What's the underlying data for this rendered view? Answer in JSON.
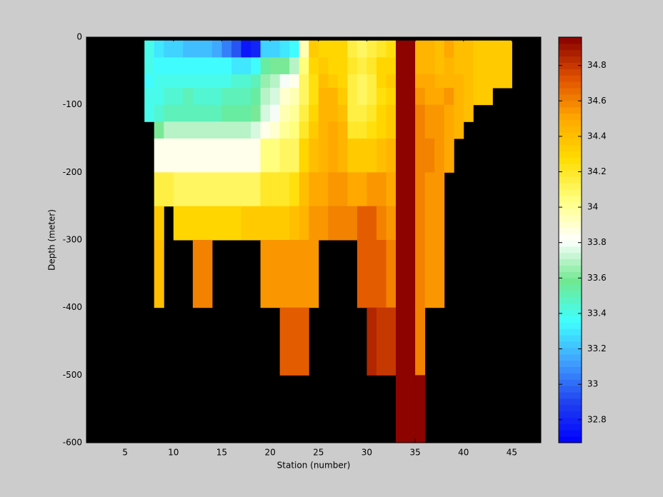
{
  "chart_data": {
    "type": "heatmap",
    "xlabel": "Station (number)",
    "ylabel": "Depth (meter)",
    "xlim": [
      1,
      48
    ],
    "ylim": [
      -600,
      0
    ],
    "xticks": [
      5,
      10,
      15,
      20,
      25,
      30,
      35,
      40,
      45
    ],
    "yticks": [
      -600,
      -500,
      -400,
      -300,
      -200,
      -100,
      0
    ],
    "xbins": [
      7,
      8,
      9,
      10,
      11,
      12,
      13,
      14,
      15,
      16,
      17,
      18,
      19,
      20,
      21,
      22,
      23,
      24,
      25,
      26,
      27,
      28,
      29,
      30,
      31,
      32,
      33,
      34,
      35,
      36,
      37,
      38,
      39,
      40,
      41,
      42,
      43,
      44,
      45
    ],
    "ybins": [
      -5,
      -30,
      -55,
      -75,
      -100,
      -125,
      -150,
      -200,
      -250,
      -300,
      -400,
      -500,
      -600
    ],
    "background": "#000000",
    "clim": [
      32.67,
      34.96
    ],
    "cticks": [
      32.8,
      33,
      33.2,
      33.4,
      33.6,
      33.8,
      34,
      34.2,
      34.4,
      34.6,
      34.8
    ],
    "colormap": [
      "#0000ff",
      "#2040f0",
      "#40a0ff",
      "#40ffff",
      "#70e890",
      "#ffffff",
      "#ffff80",
      "#ffdc00",
      "#ffa800",
      "#e05000",
      "#880000"
    ],
    "z": [
      [
        33.4,
        33.4,
        33.35,
        33.4,
        33.4,
        null,
        null,
        null,
        null,
        null,
        null,
        null
      ],
      [
        33.3,
        33.35,
        33.4,
        33.4,
        33.45,
        33.6,
        33.85,
        34.15,
        34.35,
        34.4,
        null,
        null
      ],
      [
        33.25,
        33.35,
        33.4,
        33.45,
        33.5,
        33.7,
        33.85,
        34.15,
        null,
        null,
        null,
        null
      ],
      [
        33.25,
        33.35,
        33.4,
        33.45,
        33.5,
        33.7,
        33.85,
        34.1,
        34.3,
        null,
        null,
        null
      ],
      [
        33.2,
        33.35,
        33.4,
        33.5,
        33.5,
        33.7,
        33.85,
        34.1,
        34.3,
        null,
        null,
        null
      ],
      [
        33.2,
        33.35,
        33.4,
        33.45,
        33.5,
        33.7,
        33.85,
        34.1,
        34.3,
        34.6,
        null,
        null
      ],
      [
        33.2,
        33.35,
        33.4,
        33.45,
        33.5,
        33.7,
        33.85,
        34.1,
        34.3,
        34.6,
        null,
        null
      ],
      [
        33.15,
        33.35,
        33.4,
        33.45,
        33.5,
        33.7,
        33.85,
        34.1,
        34.3,
        null,
        null,
        null
      ],
      [
        33.05,
        33.35,
        33.4,
        33.5,
        33.55,
        33.7,
        33.85,
        34.1,
        34.3,
        null,
        null,
        null
      ],
      [
        32.95,
        33.3,
        33.45,
        33.5,
        33.55,
        33.7,
        33.85,
        34.1,
        34.3,
        null,
        null,
        null
      ],
      [
        32.75,
        33.3,
        33.45,
        33.5,
        33.55,
        33.7,
        33.85,
        34.1,
        34.35,
        null,
        null,
        null
      ],
      [
        32.8,
        33.35,
        33.5,
        33.55,
        33.6,
        33.75,
        33.85,
        34.1,
        34.35,
        null,
        null,
        null
      ],
      [
        33.25,
        33.55,
        33.65,
        33.7,
        33.75,
        33.85,
        34.05,
        34.2,
        34.35,
        34.55,
        null,
        null
      ],
      [
        33.25,
        33.6,
        33.7,
        33.75,
        33.8,
        33.9,
        34.05,
        34.2,
        34.35,
        34.55,
        null,
        null
      ],
      [
        33.3,
        33.6,
        33.8,
        33.9,
        33.95,
        34,
        34.1,
        34.2,
        34.35,
        34.55,
        34.7,
        null
      ],
      [
        33.35,
        33.7,
        33.85,
        33.95,
        34,
        34.05,
        34.1,
        34.25,
        34.4,
        34.55,
        34.7,
        null
      ],
      [
        33.95,
        34.05,
        34.1,
        34.1,
        34.15,
        34.2,
        34.3,
        34.4,
        34.45,
        34.55,
        34.7,
        null
      ],
      [
        34.35,
        34.3,
        34.25,
        34.25,
        34.3,
        34.35,
        34.4,
        34.5,
        34.55,
        34.55,
        null,
        null
      ],
      [
        34.3,
        34.35,
        34.4,
        34.45,
        34.45,
        34.45,
        34.45,
        34.5,
        34.55,
        null,
        null,
        null
      ],
      [
        34.3,
        34.3,
        34.35,
        34.45,
        34.45,
        34.5,
        34.5,
        34.55,
        34.6,
        null,
        null,
        null
      ],
      [
        34.3,
        34.3,
        34.3,
        34.35,
        34.4,
        34.45,
        34.45,
        34.55,
        34.6,
        null,
        null,
        null
      ],
      [
        34.15,
        34.2,
        34.15,
        34.15,
        34.15,
        34.2,
        34.35,
        34.5,
        34.6,
        null,
        null,
        null
      ],
      [
        34.1,
        34.15,
        34.1,
        34.1,
        34.15,
        34.2,
        34.35,
        34.5,
        34.7,
        34.7,
        null,
        null
      ],
      [
        34.15,
        34.2,
        34.15,
        34.15,
        34.2,
        34.25,
        34.35,
        34.55,
        34.7,
        34.7,
        34.85,
        null
      ],
      [
        34.2,
        34.3,
        34.3,
        34.25,
        34.3,
        34.3,
        34.4,
        34.55,
        34.6,
        34.7,
        34.8,
        null
      ],
      [
        34.25,
        34.3,
        34.35,
        34.3,
        34.35,
        34.35,
        34.45,
        34.5,
        34.55,
        34.6,
        34.8,
        null
      ],
      [
        34.95,
        34.95,
        34.95,
        34.95,
        34.95,
        34.95,
        34.95,
        34.95,
        34.95,
        34.95,
        34.95,
        34.95
      ],
      [
        34.95,
        34.95,
        34.95,
        34.95,
        34.95,
        34.95,
        34.95,
        34.95,
        34.95,
        34.95,
        34.95,
        34.95
      ],
      [
        34.45,
        34.45,
        34.5,
        34.55,
        34.6,
        34.6,
        34.6,
        34.6,
        34.6,
        34.6,
        34.6,
        34.95
      ],
      [
        34.45,
        34.45,
        34.5,
        34.5,
        34.55,
        34.55,
        34.6,
        34.55,
        34.55,
        34.55,
        null,
        null
      ],
      [
        34.4,
        34.4,
        34.45,
        34.5,
        34.55,
        34.55,
        34.55,
        34.55,
        34.55,
        34.55,
        null,
        null
      ],
      [
        34.5,
        34.45,
        34.45,
        34.55,
        34.5,
        34.5,
        34.5,
        null,
        null,
        null,
        null,
        null
      ],
      [
        34.4,
        34.4,
        34.45,
        34.45,
        34.45,
        34.45,
        null,
        null,
        null,
        null,
        null,
        null
      ],
      [
        34.4,
        34.4,
        34.4,
        34.4,
        34.4,
        null,
        null,
        null,
        null,
        null,
        null,
        null
      ],
      [
        34.35,
        34.35,
        34.35,
        34.35,
        null,
        null,
        null,
        null,
        null,
        null,
        null,
        null
      ],
      [
        34.35,
        34.35,
        34.35,
        34.35,
        null,
        null,
        null,
        null,
        null,
        null,
        null,
        null
      ],
      [
        34.35,
        34.35,
        34.35,
        null,
        null,
        null,
        null,
        null,
        null,
        null,
        null,
        null
      ],
      [
        34.35,
        34.35,
        34.35,
        null,
        null,
        null,
        null,
        null,
        null,
        null,
        null,
        null
      ]
    ]
  }
}
